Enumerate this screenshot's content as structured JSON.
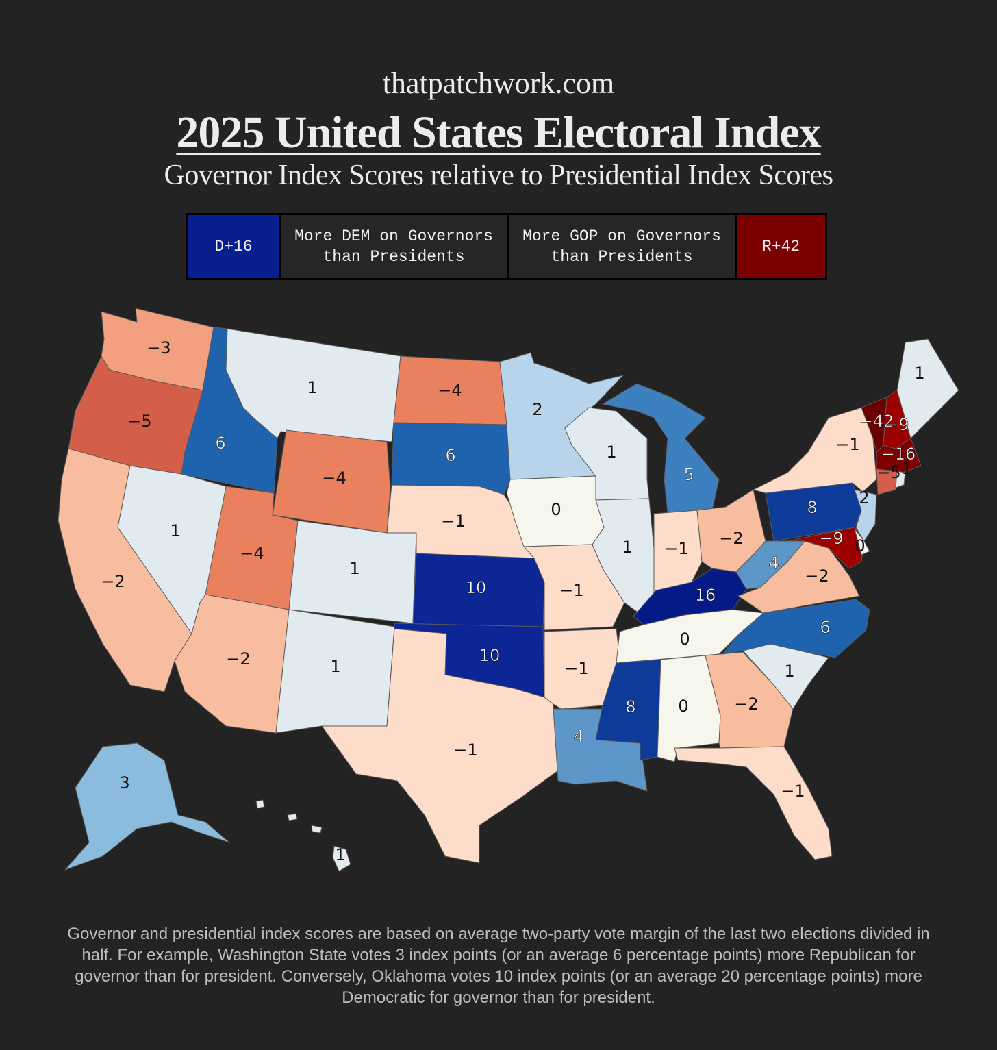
{
  "header": {
    "site": "thatpatchwork.com",
    "title": "2025 United States Electoral Index",
    "subtitle": "Governor Index Scores relative to Presidential Index Scores"
  },
  "legend": {
    "dem_max": "D+16",
    "dem_text_1": "More DEM on Governors",
    "dem_text_2": "than Presidents",
    "gop_text_1": "More GOP on Governors",
    "gop_text_2": "than Presidents",
    "gop_max": "R+42"
  },
  "colors": {
    "d16": "#061a87",
    "d10": "#0c2695",
    "d8": "#0e3a9a",
    "d6": "#1f62ad",
    "d5": "#3d80bf",
    "d4": "#5d97c9",
    "d3": "#8cbcdd",
    "d2": "#b7d4ea",
    "d1": "#e0eaef",
    "zero": "#f7f6ec",
    "r1": "#fddcca",
    "r2": "#f8bc9f",
    "r3": "#f2a07f",
    "r4": "#e9805e",
    "r5": "#d35e4a",
    "r9": "#9c0000",
    "r16": "#7f0000",
    "r42": "#6a0000"
  },
  "states": {
    "WA": {
      "name": "Washington",
      "value": "-3"
    },
    "OR": {
      "name": "Oregon",
      "value": "-5"
    },
    "CA": {
      "name": "California",
      "value": "-2"
    },
    "ID": {
      "name": "Idaho",
      "value": "6"
    },
    "NV": {
      "name": "Nevada",
      "value": "1"
    },
    "MT": {
      "name": "Montana",
      "value": "1"
    },
    "WY": {
      "name": "Wyoming",
      "value": "-4"
    },
    "UT": {
      "name": "Utah",
      "value": "-4"
    },
    "AZ": {
      "name": "Arizona",
      "value": "-2"
    },
    "CO": {
      "name": "Colorado",
      "value": "1"
    },
    "NM": {
      "name": "New Mexico",
      "value": "1"
    },
    "ND": {
      "name": "North Dakota",
      "value": "-4"
    },
    "SD": {
      "name": "South Dakota",
      "value": "6"
    },
    "NE": {
      "name": "Nebraska",
      "value": "-1"
    },
    "KS": {
      "name": "Kansas",
      "value": "10"
    },
    "OK": {
      "name": "Oklahoma",
      "value": "10"
    },
    "TX": {
      "name": "Texas",
      "value": "-1"
    },
    "MN": {
      "name": "Minnesota",
      "value": "2"
    },
    "IA": {
      "name": "Iowa",
      "value": "0"
    },
    "MO": {
      "name": "Missouri",
      "value": "-1"
    },
    "AR": {
      "name": "Arkansas",
      "value": "-1"
    },
    "LA": {
      "name": "Louisiana",
      "value": "4"
    },
    "WI": {
      "name": "Wisconsin",
      "value": "1"
    },
    "IL": {
      "name": "Illinois",
      "value": "1"
    },
    "MI": {
      "name": "Michigan",
      "value": "5"
    },
    "IN": {
      "name": "Indiana",
      "value": "-1"
    },
    "OH": {
      "name": "Ohio",
      "value": "-2"
    },
    "KY": {
      "name": "Kentucky",
      "value": "16"
    },
    "TN": {
      "name": "Tennessee",
      "value": "0"
    },
    "MS": {
      "name": "Mississippi",
      "value": "8"
    },
    "AL": {
      "name": "Alabama",
      "value": "0"
    },
    "GA": {
      "name": "Georgia",
      "value": "-2"
    },
    "FL": {
      "name": "Florida",
      "value": "-1"
    },
    "SC": {
      "name": "South Carolina",
      "value": "1"
    },
    "NC": {
      "name": "North Carolina",
      "value": "6"
    },
    "VA": {
      "name": "Virginia",
      "value": "-2"
    },
    "WV": {
      "name": "West Virginia",
      "value": "4"
    },
    "PA": {
      "name": "Pennsylvania",
      "value": "8"
    },
    "NY": {
      "name": "New York",
      "value": "-1"
    },
    "NJ": {
      "name": "New Jersey",
      "value": "2"
    },
    "MD": {
      "name": "Maryland",
      "value": "-9"
    },
    "DE": {
      "name": "Delaware",
      "value": "0"
    },
    "VT": {
      "name": "Vermont",
      "value": "-42"
    },
    "NH": {
      "name": "New Hampshire",
      "value": "-9"
    },
    "MA": {
      "name": "Massachusetts",
      "value": "-16"
    },
    "CT": {
      "name": "Connecticut",
      "value": "-5"
    },
    "RI": {
      "name": "Rhode Island",
      "value": "1"
    },
    "ME": {
      "name": "Maine",
      "value": "1"
    },
    "AK": {
      "name": "Alaska",
      "value": "3"
    },
    "HI": {
      "name": "Hawaii",
      "value": "1"
    }
  },
  "footnote": "Governor and presidential index scores are based on average two-party vote margin of the last two elections divided in half. For example, Washington State votes 3 index points (or an average 6 percentage points) more Republican for governor than for president. Conversely, Oklahoma votes 10 index points (or an average 20 percentage points) more Democratic for governor than for president."
}
